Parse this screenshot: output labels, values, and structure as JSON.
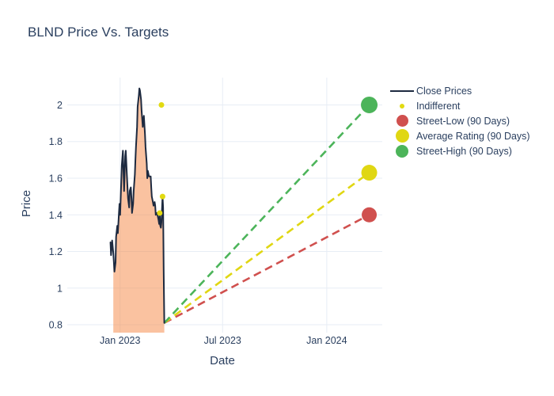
{
  "title": "BLND Price Vs. Targets",
  "axes": {
    "x": {
      "label": "Date"
    },
    "y": {
      "label": "Price"
    }
  },
  "legend": {
    "items": [
      {
        "label": "Close Prices",
        "swatch": "line",
        "color": "#1d2a40",
        "size": 30
      },
      {
        "label": "Indifferent",
        "swatch": "dot",
        "color": "#e2da11",
        "size": 6
      },
      {
        "label": "Street-Low (90 Days)",
        "swatch": "dot",
        "color": "#d0504e",
        "size": 15
      },
      {
        "label": "Average Rating (90 Days)",
        "swatch": "dot",
        "color": "#e0d713",
        "size": 17
      },
      {
        "label": "Street-High (90 Days)",
        "swatch": "dot",
        "color": "#4cb45a",
        "size": 16
      }
    ]
  },
  "colors": {
    "close_line": "#1d2a40",
    "close_fill": "rgba(245,133,66,0.5)",
    "indifferent": "#e2da11",
    "street_low": "#d0504e",
    "average": "#e0d713",
    "street_high": "#4cb45a",
    "grid": "#e7edf5",
    "text": "#2a3f5f"
  },
  "chart_data": {
    "type": "line",
    "title": "BLND Price Vs. Targets",
    "xlabel": "Date",
    "ylabel": "Price",
    "x_unit": "days relative to Jan 1 2023 (estimated from axis ticks)",
    "x_domain_days": [
      -93.3,
      463
    ],
    "y_range": [
      0.757,
      2.149
    ],
    "grid": true,
    "legend_position": "right",
    "x_ticks": [
      {
        "day": 0,
        "label": "Jan 2023"
      },
      {
        "day": 181,
        "label": "Jul 2023"
      },
      {
        "day": 365,
        "label": "Jan 2024"
      }
    ],
    "y_ticks": [
      0.8,
      1,
      1.2,
      1.4,
      1.6,
      1.8,
      2
    ],
    "close_prices": [
      [
        -17,
        1.25
      ],
      [
        -16,
        1.18
      ],
      [
        -14,
        1.26
      ],
      [
        -12,
        1.19
      ],
      [
        -10,
        1.09
      ],
      [
        -8,
        1.14
      ],
      [
        -7,
        1.28
      ],
      [
        -5,
        1.34
      ],
      [
        -4,
        1.3
      ],
      [
        -2,
        1.41
      ],
      [
        -1,
        1.46
      ],
      [
        0,
        1.4
      ],
      [
        2,
        1.58
      ],
      [
        3,
        1.67
      ],
      [
        5,
        1.75
      ],
      [
        6,
        1.64
      ],
      [
        7,
        1.53
      ],
      [
        9,
        1.72
      ],
      [
        10,
        1.75
      ],
      [
        12,
        1.62
      ],
      [
        13,
        1.55
      ],
      [
        14,
        1.49
      ],
      [
        16,
        1.44
      ],
      [
        17,
        1.53
      ],
      [
        19,
        1.55
      ],
      [
        20,
        1.49
      ],
      [
        21,
        1.41
      ],
      [
        23,
        1.46
      ],
      [
        24,
        1.53
      ],
      [
        26,
        1.62
      ],
      [
        27,
        1.7
      ],
      [
        28,
        1.77
      ],
      [
        30,
        1.88
      ],
      [
        31,
        1.99
      ],
      [
        33,
        2.05
      ],
      [
        34,
        2.09
      ],
      [
        35,
        2.08
      ],
      [
        37,
        2.03
      ],
      [
        38,
        1.97
      ],
      [
        40,
        1.88
      ],
      [
        41,
        1.92
      ],
      [
        42,
        1.94
      ],
      [
        44,
        1.84
      ],
      [
        45,
        1.77
      ],
      [
        47,
        1.68
      ],
      [
        48,
        1.6
      ],
      [
        49,
        1.64
      ],
      [
        51,
        1.61
      ],
      [
        52,
        1.61
      ],
      [
        54,
        1.61
      ],
      [
        55,
        1.55
      ],
      [
        56,
        1.5
      ],
      [
        58,
        1.47
      ],
      [
        59,
        1.45
      ],
      [
        61,
        1.47
      ],
      [
        62,
        1.45
      ],
      [
        63,
        1.4
      ],
      [
        65,
        1.41
      ],
      [
        66,
        1.4
      ],
      [
        68,
        1.37
      ],
      [
        69,
        1.35
      ],
      [
        70,
        1.41
      ],
      [
        71,
        1.34
      ],
      [
        72,
        1.33
      ],
      [
        73,
        1.36
      ],
      [
        74,
        1.43
      ],
      [
        75,
        1.5
      ],
      [
        76,
        1.44
      ],
      [
        77,
        1.1
      ],
      [
        78,
        0.81
      ]
    ],
    "area_fill_start_day": -12,
    "indifferent_points": [
      {
        "day": 73,
        "price": 2.0
      },
      {
        "day": 75,
        "price": 1.5
      },
      {
        "day": 70,
        "price": 1.41
      }
    ],
    "projection_origin": {
      "day": 78,
      "price": 0.81
    },
    "targets": [
      {
        "name": "Street-Low (90 Days)",
        "day": 440,
        "price": 1.4,
        "color": "#d0504e",
        "r": 9.5
      },
      {
        "name": "Average Rating (90 Days)",
        "day": 440,
        "price": 1.63,
        "color": "#e0d713",
        "r": 10
      },
      {
        "name": "Street-High (90 Days)",
        "day": 440,
        "price": 2.0,
        "color": "#4cb45a",
        "r": 10.5
      }
    ]
  }
}
